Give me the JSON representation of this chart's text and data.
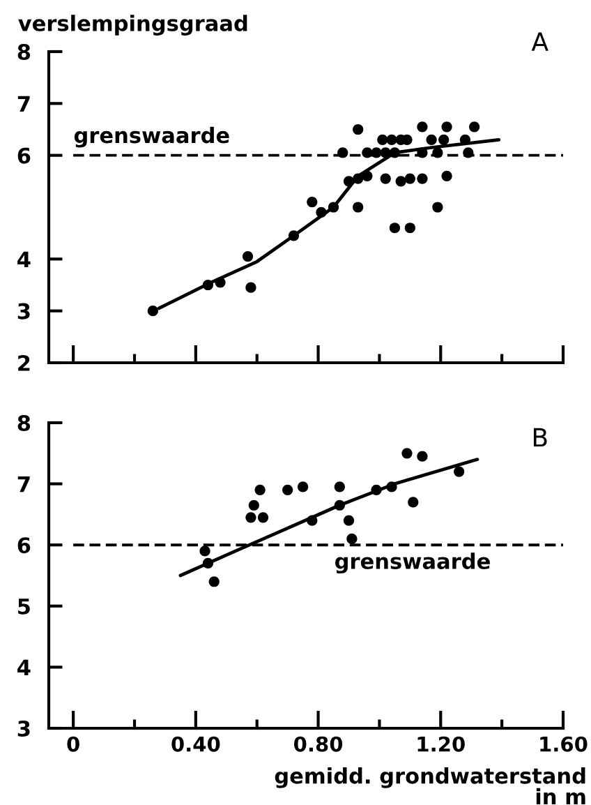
{
  "chart_data": [
    {
      "type": "scatter",
      "title": "A",
      "ylabel": "verslempingsgraad",
      "xlim": [
        -0.08,
        1.6
      ],
      "xticks": [
        {
          "value": 0,
          "label": null
        },
        {
          "value": 0.2,
          "label": null
        },
        {
          "value": 0.4,
          "label": null
        },
        {
          "value": 0.6,
          "label": null
        },
        {
          "value": 0.8,
          "label": null
        },
        {
          "value": 1.0,
          "label": null
        },
        {
          "value": 1.2,
          "label": null
        },
        {
          "value": 1.4,
          "label": null
        },
        {
          "value": 1.6,
          "label": null
        }
      ],
      "ylim": [
        2,
        8
      ],
      "yticks": [
        2,
        3,
        4,
        6,
        7,
        8
      ],
      "tick_labels": "y",
      "series": [
        {
          "color": "#000000",
          "marker": "circle",
          "x": [
            0.26,
            0.44,
            0.48,
            0.57,
            0.58,
            0.72,
            0.78,
            0.81,
            0.85,
            0.88,
            0.9,
            0.93,
            0.93,
            0.93,
            0.96,
            0.96,
            0.99,
            1.01,
            1.02,
            1.02,
            1.04,
            1.05,
            1.05,
            1.07,
            1.07,
            1.09,
            1.1,
            1.1,
            1.14,
            1.14,
            1.14,
            1.17,
            1.19,
            1.19,
            1.21,
            1.22,
            1.22,
            1.28,
            1.29,
            1.31
          ],
          "values": [
            3.0,
            3.5,
            3.55,
            4.05,
            3.45,
            4.45,
            5.1,
            4.9,
            5.0,
            6.05,
            5.5,
            6.5,
            5.55,
            5.0,
            5.6,
            6.05,
            6.05,
            6.3,
            6.05,
            5.55,
            6.3,
            6.05,
            4.6,
            6.3,
            5.5,
            6.3,
            5.55,
            4.6,
            6.55,
            6.05,
            5.55,
            6.3,
            6.05,
            5.0,
            6.3,
            6.55,
            5.6,
            6.3,
            6.05,
            6.55
          ]
        },
        {
          "type": "line",
          "color": "#000000",
          "line_style": "solid",
          "x": [
            0.28,
            0.45,
            0.6,
            0.72,
            0.85,
            0.93,
            1.05,
            1.17,
            1.39
          ],
          "values": [
            3.05,
            3.55,
            3.95,
            4.45,
            5.0,
            5.6,
            6.05,
            6.15,
            6.3
          ]
        }
      ],
      "ref_lines": [
        {
          "axis": "y",
          "value": 6,
          "label": "grenswaarde",
          "color": "#000000",
          "line_style": "dashed"
        }
      ]
    },
    {
      "type": "scatter",
      "title": "B",
      "xlabel": "gemidd. grondwaterstand\nin m",
      "xlim": [
        -0.08,
        1.6
      ],
      "xticks": [
        {
          "value": 0,
          "label": "0"
        },
        {
          "value": 0.2,
          "label": null
        },
        {
          "value": 0.4,
          "label": "0.40"
        },
        {
          "value": 0.6,
          "label": null
        },
        {
          "value": 0.8,
          "label": "0.80"
        },
        {
          "value": 1.0,
          "label": null
        },
        {
          "value": 1.2,
          "label": "1.20"
        },
        {
          "value": 1.4,
          "label": null
        },
        {
          "value": 1.6,
          "label": "1.60"
        }
      ],
      "ylim": [
        3,
        8
      ],
      "yticks": [
        3,
        4,
        5,
        6,
        7,
        8
      ],
      "series": [
        {
          "color": "#000000",
          "marker": "circle",
          "x": [
            0.43,
            0.44,
            0.46,
            0.58,
            0.59,
            0.61,
            0.62,
            0.7,
            0.75,
            0.78,
            0.87,
            0.87,
            0.9,
            0.91,
            0.99,
            1.04,
            1.09,
            1.11,
            1.14,
            1.26
          ],
          "values": [
            5.9,
            5.7,
            5.4,
            6.45,
            6.65,
            6.9,
            6.45,
            6.9,
            6.95,
            6.4,
            6.95,
            6.65,
            6.4,
            6.1,
            6.9,
            6.95,
            7.5,
            6.7,
            7.45,
            7.2
          ]
        },
        {
          "type": "line",
          "color": "#000000",
          "line_style": "solid",
          "x": [
            0.35,
            0.53,
            0.78,
            0.87,
            1.05,
            1.32
          ],
          "values": [
            5.5,
            5.9,
            6.45,
            6.65,
            7.0,
            7.4
          ]
        }
      ],
      "ref_lines": [
        {
          "axis": "y",
          "value": 6,
          "label": "grenswaarde",
          "color": "#000000",
          "line_style": "dashed"
        }
      ]
    }
  ]
}
